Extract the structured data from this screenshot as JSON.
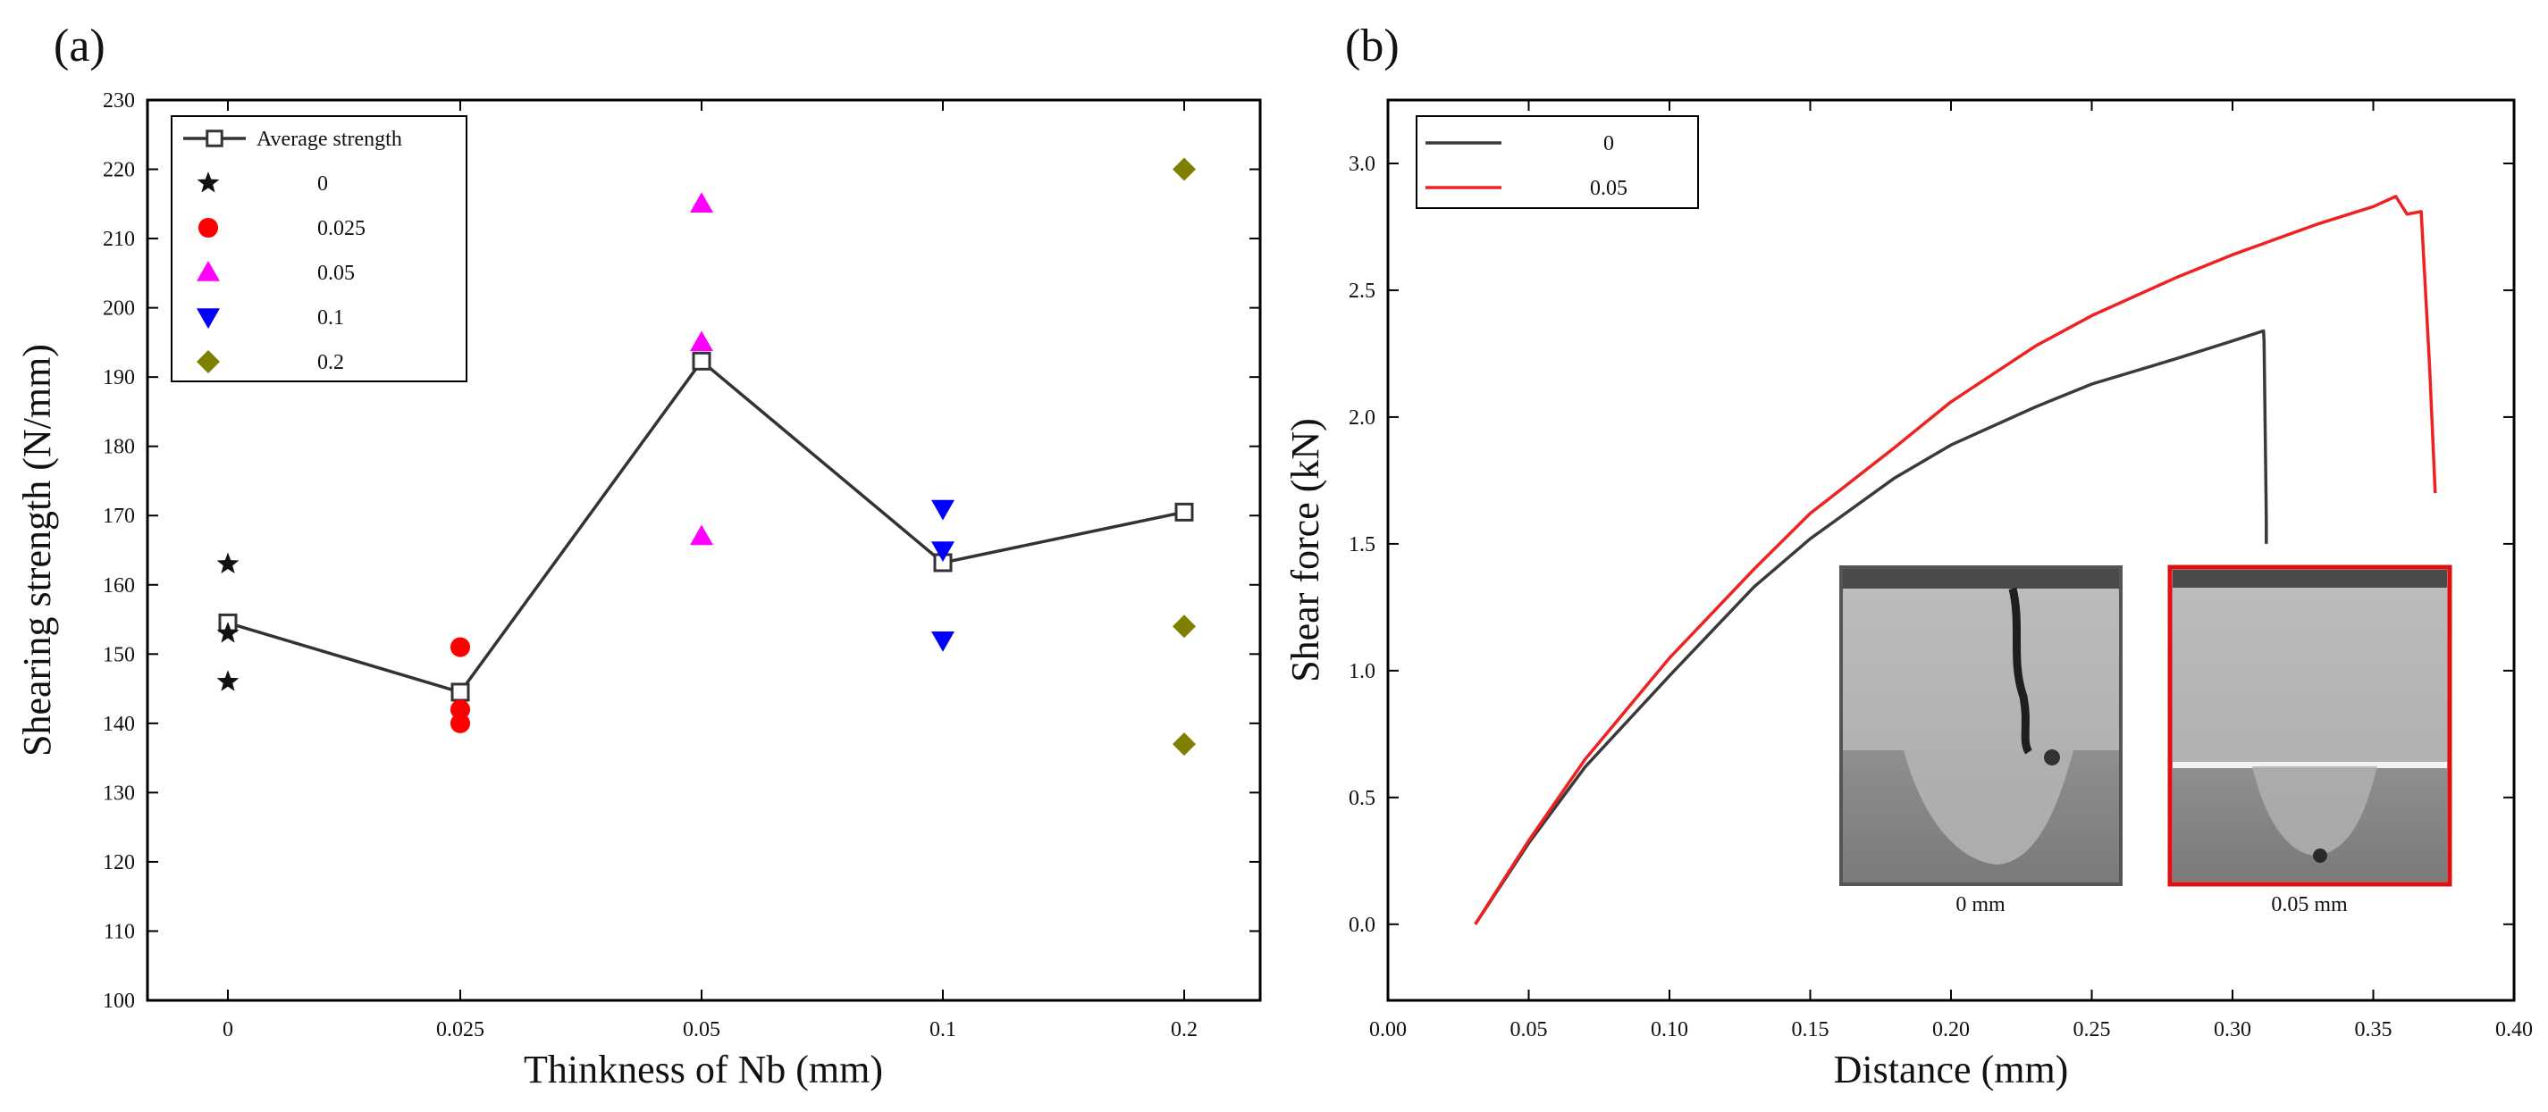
{
  "chart_data": [
    {
      "panel_label": "(a)",
      "type": "scatter",
      "xlabel": "Thinkness of Nb (mm)",
      "ylabel": "Shearing strength (N/mm)",
      "categories": [
        "0",
        "0.025",
        "0.05",
        "0.1",
        "0.2"
      ],
      "ylim": [
        100,
        230
      ],
      "yticks": [
        100,
        110,
        120,
        130,
        140,
        150,
        160,
        170,
        180,
        190,
        200,
        210,
        220,
        230
      ],
      "legend_position": "top-left",
      "average_series": {
        "name": "Average strength",
        "color": "#333333",
        "marker": "open-square",
        "values": [
          154.5,
          144.5,
          192.3,
          163.2,
          170.5
        ]
      },
      "series": [
        {
          "name": "0",
          "category_index": 0,
          "color": "#111111",
          "marker": "star",
          "values": [
            163,
            153,
            146
          ]
        },
        {
          "name": "0.025",
          "category_index": 1,
          "color": "#ff0000",
          "marker": "circle",
          "values": [
            151,
            142,
            140
          ]
        },
        {
          "name": "0.05",
          "category_index": 2,
          "color": "#ff00ff",
          "marker": "triangle-up",
          "values": [
            215,
            195,
            167
          ]
        },
        {
          "name": "0.1",
          "category_index": 3,
          "color": "#0000ff",
          "marker": "triangle-down",
          "values": [
            171,
            165,
            152
          ]
        },
        {
          "name": "0.2",
          "category_index": 4,
          "color": "#808000",
          "marker": "diamond",
          "values": [
            220,
            154,
            137
          ]
        }
      ]
    },
    {
      "panel_label": "(b)",
      "type": "line",
      "xlabel": "Distance (mm)",
      "ylabel": "Shear force (kN)",
      "xlim": [
        0,
        0.4
      ],
      "ylim": [
        -0.3,
        3.25
      ],
      "xticks": [
        "0.00",
        "0.05",
        "0.10",
        "0.15",
        "0.20",
        "0.25",
        "0.30",
        "0.35",
        "0.40"
      ],
      "yticks": [
        "0.0",
        "0.5",
        "1.0",
        "1.5",
        "2.0",
        "2.5",
        "3.0"
      ],
      "legend_position": "top-left",
      "series": [
        {
          "name": "0",
          "color": "#3a3a3a",
          "x": [
            0.031,
            0.05,
            0.07,
            0.1,
            0.13,
            0.15,
            0.18,
            0.2,
            0.23,
            0.25,
            0.28,
            0.3,
            0.311,
            0.3112,
            0.312,
            0.312
          ],
          "y": [
            0.0,
            0.32,
            0.62,
            0.98,
            1.33,
            1.52,
            1.76,
            1.89,
            2.04,
            2.13,
            2.23,
            2.3,
            2.34,
            2.3,
            1.6,
            1.5
          ]
        },
        {
          "name": "0.05",
          "color": "#ee2222",
          "x": [
            0.031,
            0.05,
            0.07,
            0.1,
            0.13,
            0.15,
            0.18,
            0.2,
            0.23,
            0.25,
            0.28,
            0.3,
            0.33,
            0.35,
            0.358,
            0.362,
            0.367,
            0.37,
            0.372
          ],
          "y": [
            0.0,
            0.33,
            0.65,
            1.05,
            1.4,
            1.62,
            1.88,
            2.06,
            2.28,
            2.4,
            2.55,
            2.64,
            2.76,
            2.83,
            2.87,
            2.8,
            2.81,
            2.2,
            1.7
          ]
        }
      ],
      "insets": [
        {
          "caption": "0 mm",
          "border_color": "#555555"
        },
        {
          "caption": "0.05 mm",
          "border_color": "#dd1111"
        }
      ]
    }
  ]
}
